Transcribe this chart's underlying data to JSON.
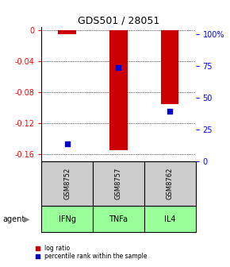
{
  "title": "GDS501 / 28051",
  "samples": [
    "GSM8752",
    "GSM8757",
    "GSM8762"
  ],
  "agents": [
    "IFNg",
    "TNFa",
    "IL4"
  ],
  "log_ratios": [
    -0.005,
    -0.155,
    -0.095
  ],
  "percentile_ranks": [
    13.0,
    70.0,
    37.0
  ],
  "ylim_left": [
    -0.17,
    0.005
  ],
  "ylim_right": [
    0,
    106
  ],
  "left_ticks": [
    0,
    -0.04,
    -0.08,
    -0.12,
    -0.16
  ],
  "right_ticks": [
    0,
    25,
    50,
    75,
    100
  ],
  "bar_color": "#cc0000",
  "dot_color": "#0000cc",
  "sample_box_color": "#cccccc",
  "agent_box_color": "#99ff99",
  "legend_log_ratio": "log ratio",
  "legend_percentile": "percentile rank within the sample",
  "figsize": [
    2.9,
    3.36
  ],
  "dpi": 100
}
